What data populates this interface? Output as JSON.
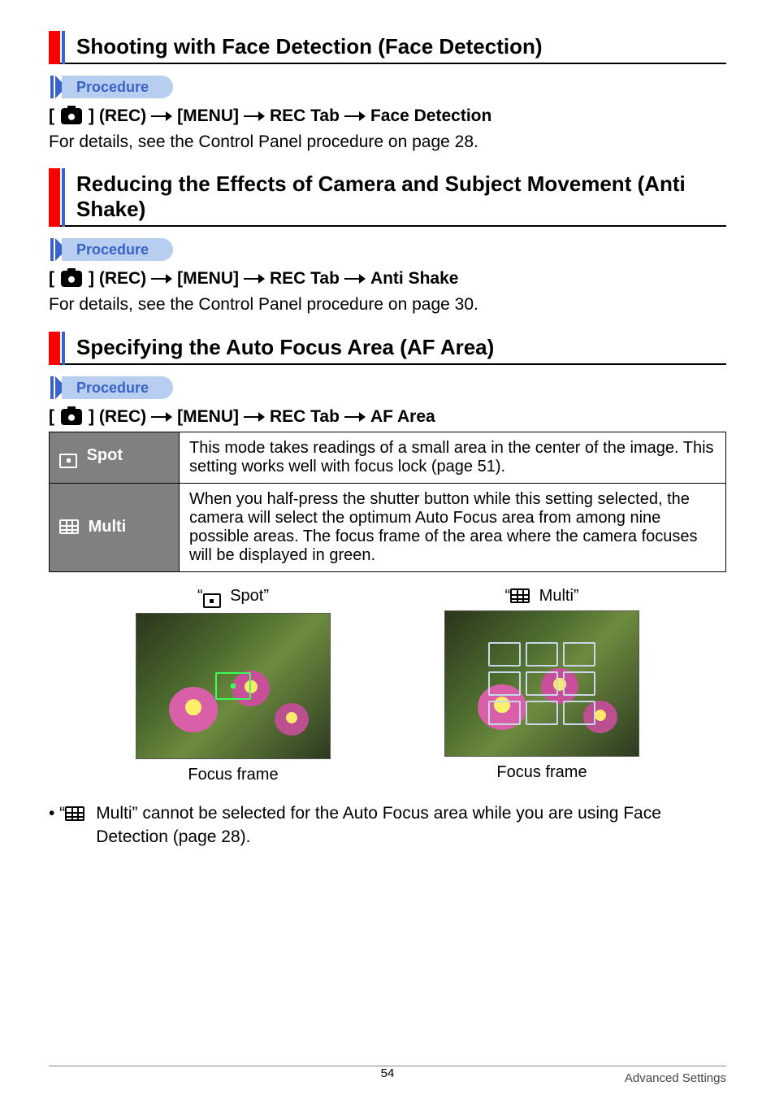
{
  "sections": [
    {
      "title": "Shooting with Face Detection (Face Detection)",
      "procedure_label": "Procedure",
      "path": [
        "] (REC)",
        "[MENU]",
        "REC Tab",
        "Face Detection"
      ],
      "body": "For details, see the Control Panel procedure on page 28."
    },
    {
      "title": "Reducing the Effects of Camera and Subject Movement (Anti Shake)",
      "procedure_label": "Procedure",
      "path": [
        "] (REC)",
        "[MENU]",
        "REC Tab",
        "Anti Shake"
      ],
      "body": "For details, see the Control Panel procedure on page 30."
    },
    {
      "title": "Specifying the Auto Focus Area (AF Area)",
      "procedure_label": "Procedure",
      "path": [
        "] (REC)",
        "[MENU]",
        "REC Tab",
        "AF Area"
      ],
      "body": ""
    }
  ],
  "af_table": {
    "rows": [
      {
        "icon": "spot",
        "label": "Spot",
        "desc": "This mode takes readings of a small area in the center of the image. This setting works well with focus lock (page 51)."
      },
      {
        "icon": "multi",
        "label": "Multi",
        "desc": "When you half-press the shutter button while this setting selected, the camera will select the optimum Auto Focus area from among nine possible areas. The focus frame of the area where the camera focuses will be displayed in green."
      }
    ]
  },
  "samples": {
    "left": {
      "caption_top_prefix": "“",
      "caption_top_label": "Spot”",
      "caption_bottom": "Focus frame"
    },
    "right": {
      "caption_top_prefix": "“",
      "caption_top_label": "Multi”",
      "caption_bottom": "Focus frame"
    }
  },
  "note": {
    "prefix": "• “",
    "label": "Multi” cannot be selected for the Auto Focus area while you are using Face Detection (page 28)."
  },
  "footer": {
    "page": "54",
    "section": "Advanced Settings"
  },
  "colors": {
    "red_bar": "#ff0000",
    "blue_bar": "#3a63c8",
    "pill_bg": "#b7cef0",
    "table_hdr_bg": "#808080",
    "focus_green": "#39ff5a"
  }
}
